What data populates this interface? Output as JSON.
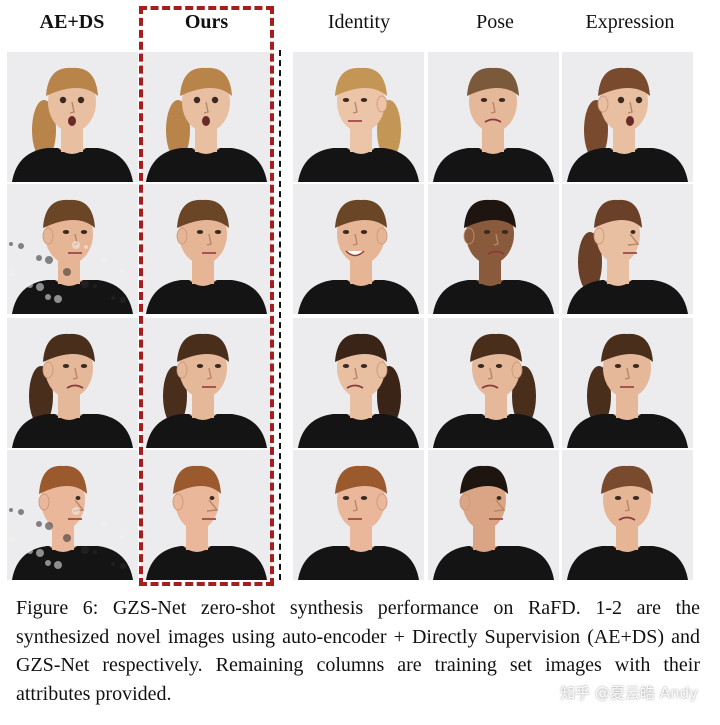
{
  "figure": {
    "column_headers": [
      {
        "text": "AE+DS",
        "bold": true
      },
      {
        "text": "Ours",
        "bold": true
      },
      {
        "text": "Identity",
        "bold": false
      },
      {
        "text": "Pose",
        "bold": false
      },
      {
        "text": "Expression",
        "bold": false
      }
    ],
    "caption": "Figure 6: GZS-Net zero-shot synthesis performance on RaFD. 1-2 are the synthesized novel images using auto-encoder + Directly Supervision (AE+DS) and GZS-Net respectively. Remaining columns are training set images with their attributes provided.",
    "watermark": "知乎 @夏云皓 Andy",
    "highlight_color": "#a51d1d",
    "rows": [
      [
        {
          "hair": "#b8844a",
          "long": true,
          "pose": "front",
          "expr": "surprised",
          "skin": "#e9bfa2",
          "noise": false
        },
        {
          "hair": "#b8844a",
          "long": true,
          "pose": "front",
          "expr": "surprised",
          "skin": "#e9bfa2",
          "noise": false
        },
        {
          "hair": "#c49656",
          "long": true,
          "pose": "three-quarter-left",
          "expr": "neutral",
          "skin": "#ecc4a8",
          "noise": false
        },
        {
          "hair": "#7a5a3a",
          "long": false,
          "pose": "front",
          "expr": "disgust",
          "skin": "#e6b89a",
          "noise": false
        },
        {
          "hair": "#7a4a2e",
          "long": true,
          "pose": "three-quarter-right",
          "expr": "surprised",
          "skin": "#e9bfa2",
          "noise": false
        }
      ],
      [
        {
          "hair": "#6a4526",
          "long": false,
          "pose": "three-quarter-right",
          "expr": "neutral",
          "skin": "#e6b596",
          "noise": true
        },
        {
          "hair": "#6a4526",
          "long": false,
          "pose": "three-quarter-right",
          "expr": "neutral",
          "skin": "#e6b596",
          "noise": false
        },
        {
          "hair": "#6a4526",
          "long": false,
          "pose": "three-quarter-left",
          "expr": "happy",
          "skin": "#e6b596",
          "noise": false
        },
        {
          "hair": "#1e1410",
          "long": false,
          "pose": "three-quarter-right",
          "expr": "disgust",
          "skin": "#8a5a3c",
          "noise": false
        },
        {
          "hair": "#6a4028",
          "long": true,
          "pose": "profile-right",
          "expr": "neutral",
          "skin": "#e9bfa2",
          "noise": false
        }
      ],
      [
        {
          "hair": "#4a2e1c",
          "long": true,
          "pose": "three-quarter-right",
          "expr": "disgust",
          "skin": "#e6b89a",
          "noise": false
        },
        {
          "hair": "#4a2e1c",
          "long": true,
          "pose": "three-quarter-right",
          "expr": "neutral",
          "skin": "#e6b89a",
          "noise": false
        },
        {
          "hair": "#3a2418",
          "long": true,
          "pose": "three-quarter-left",
          "expr": "disgust",
          "skin": "#e9bfa2",
          "noise": false
        },
        {
          "hair": "#4a2e1c",
          "long": true,
          "pose": "three-quarter-left",
          "expr": "disgust",
          "skin": "#e6b89a",
          "noise": false
        },
        {
          "hair": "#4a2e1c",
          "long": true,
          "pose": "front",
          "expr": "neutral",
          "skin": "#e6b89a",
          "noise": false
        }
      ],
      [
        {
          "hair": "#9a5a2e",
          "long": false,
          "pose": "profile-right",
          "expr": "neutral",
          "skin": "#eab79a",
          "noise": true
        },
        {
          "hair": "#9a5a2e",
          "long": false,
          "pose": "profile-right",
          "expr": "neutral",
          "skin": "#eab79a",
          "noise": false
        },
        {
          "hair": "#9a5a2e",
          "long": false,
          "pose": "three-quarter-left",
          "expr": "neutral",
          "skin": "#eab79a",
          "noise": false
        },
        {
          "hair": "#1e1410",
          "long": false,
          "pose": "profile-right",
          "expr": "neutral",
          "skin": "#d9a584",
          "noise": false
        },
        {
          "hair": "#7a4a2e",
          "long": false,
          "pose": "front",
          "expr": "disgust",
          "skin": "#e6b596",
          "noise": false
        }
      ]
    ]
  }
}
